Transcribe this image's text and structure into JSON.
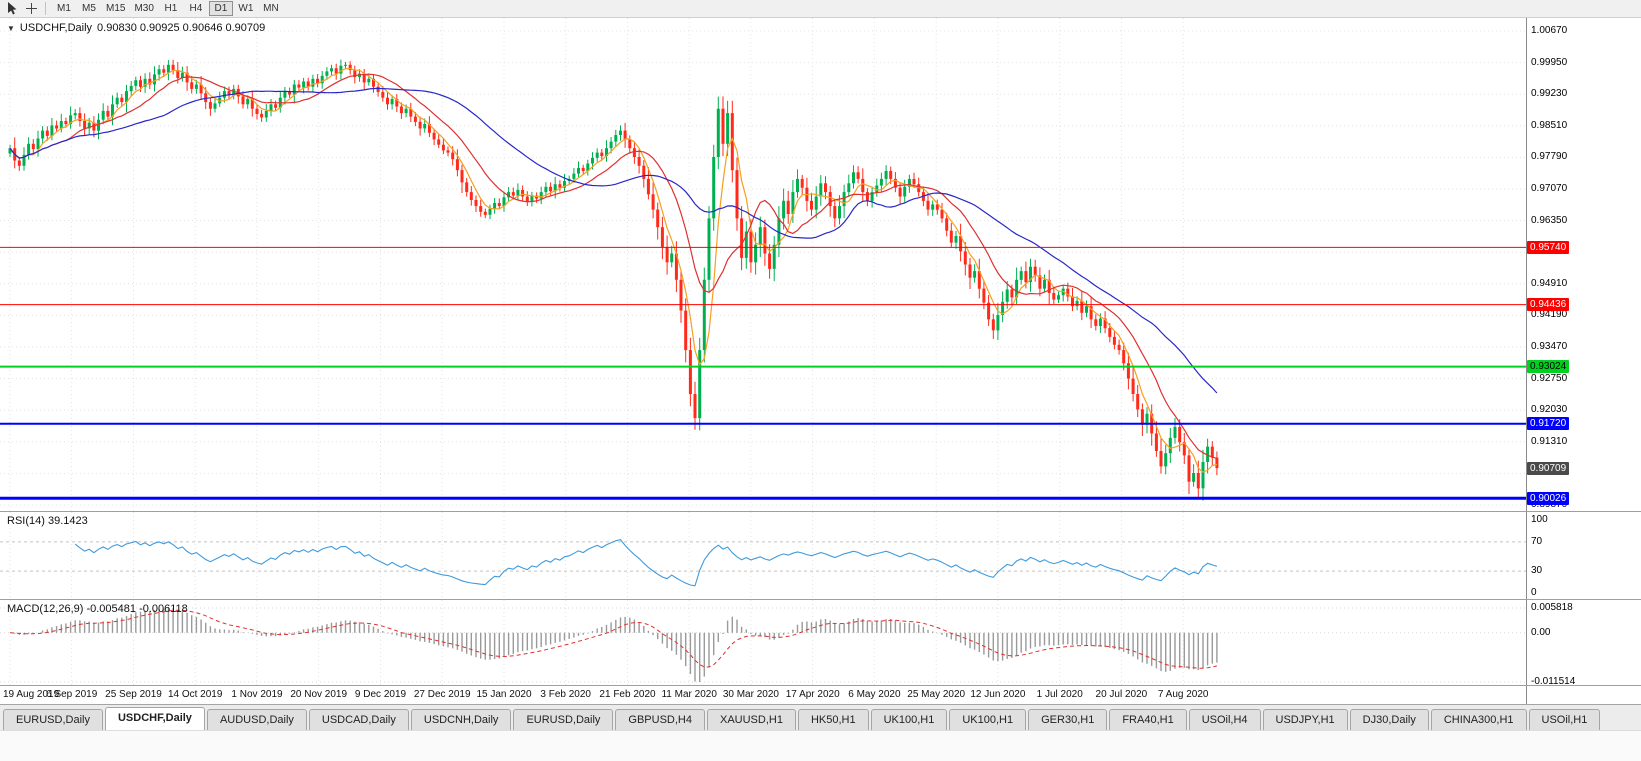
{
  "toolbar": {
    "timeframes": [
      "M1",
      "M5",
      "M15",
      "M30",
      "H1",
      "H4",
      "D1",
      "W1",
      "MN"
    ],
    "active_timeframe": "D1"
  },
  "chart": {
    "title": "USDCHF,Daily",
    "ohlc_text": "0.90830 0.90925 0.90646 0.90709",
    "open": "0.90830",
    "high": "0.90925",
    "low": "0.90646",
    "close": "0.90709"
  },
  "chart_data": {
    "type": "candlestick",
    "symbol": "USDCHF",
    "timeframe": "Daily",
    "x_labels": [
      "19 Aug 2019",
      "6 Sep 2019",
      "25 Sep 2019",
      "14 Oct 2019",
      "1 Nov 2019",
      "20 Nov 2019",
      "9 Dec 2019",
      "27 Dec 2019",
      "15 Jan 2020",
      "3 Feb 2020",
      "21 Feb 2020",
      "11 Mar 2020",
      "30 Mar 2020",
      "17 Apr 2020",
      "6 May 2020",
      "25 May 2020",
      "12 Jun 2020",
      "1 Jul 2020",
      "20 Jul 2020",
      "7 Aug 2020"
    ],
    "y_axis": {
      "top": 1.0067,
      "step": 0.0072,
      "labels": [
        "1.00670",
        "0.99950",
        "0.99230",
        "0.98510",
        "0.97790",
        "0.97070",
        "0.96350",
        "0.95630",
        "0.94910",
        "0.94190",
        "0.93470",
        "0.92750",
        "0.92030",
        "0.91310",
        "0.90590",
        "0.89870"
      ]
    },
    "closes": [
      0.98,
      0.9772,
      0.976,
      0.9785,
      0.981,
      0.9798,
      0.9822,
      0.984,
      0.9828,
      0.9852,
      0.9845,
      0.9862,
      0.9855,
      0.9875,
      0.988,
      0.9862,
      0.9845,
      0.9858,
      0.984,
      0.9865,
      0.9885,
      0.9872,
      0.99,
      0.9915,
      0.9905,
      0.993,
      0.9942,
      0.9955,
      0.994,
      0.9958,
      0.9945,
      0.9968,
      0.998,
      0.9972,
      0.999,
      0.9978,
      0.996,
      0.9972,
      0.995,
      0.9935,
      0.9945,
      0.9925,
      0.9905,
      0.989,
      0.9902,
      0.9915,
      0.993,
      0.992,
      0.9935,
      0.9918,
      0.99,
      0.9912,
      0.989,
      0.9878,
      0.987,
      0.9885,
      0.99,
      0.9892,
      0.9915,
      0.993,
      0.9922,
      0.9945,
      0.9938,
      0.9952,
      0.994,
      0.9958,
      0.9948,
      0.9965,
      0.9975,
      0.9982,
      0.997,
      0.9988,
      0.999,
      0.9978,
      0.9962,
      0.997,
      0.995,
      0.9958,
      0.994,
      0.9928,
      0.9915,
      0.99,
      0.9912,
      0.9895,
      0.988,
      0.989,
      0.9872,
      0.986,
      0.9845,
      0.9855,
      0.9835,
      0.982,
      0.9808,
      0.9795,
      0.979,
      0.9775,
      0.975,
      0.9722,
      0.97,
      0.9682,
      0.9668,
      0.9655,
      0.9648,
      0.9662,
      0.9675,
      0.9668,
      0.9688,
      0.97,
      0.9692,
      0.9705,
      0.969,
      0.9678,
      0.9692,
      0.9685,
      0.97,
      0.9712,
      0.9702,
      0.9718,
      0.971,
      0.9725,
      0.973,
      0.9742,
      0.9755,
      0.9748,
      0.9765,
      0.9778,
      0.979,
      0.9782,
      0.98,
      0.9815,
      0.983,
      0.984,
      0.982,
      0.98,
      0.978,
      0.976,
      0.973,
      0.9695,
      0.966,
      0.962,
      0.9575,
      0.954,
      0.956,
      0.95,
      0.943,
      0.934,
      0.924,
      0.9185,
      0.934,
      0.95,
      0.964,
      0.978,
      0.989,
      0.981,
      0.988,
      0.975,
      0.964,
      0.955,
      0.961,
      0.954,
      0.958,
      0.962,
      0.956,
      0.9525,
      0.958,
      0.964,
      0.968,
      0.965,
      0.97,
      0.973,
      0.971,
      0.968,
      0.966,
      0.969,
      0.972,
      0.97,
      0.9668,
      0.964,
      0.9668,
      0.97,
      0.972,
      0.9745,
      0.973,
      0.97,
      0.968,
      0.97,
      0.9715,
      0.973,
      0.9748,
      0.973,
      0.971,
      0.969,
      0.9712,
      0.973,
      0.9718,
      0.97,
      0.968,
      0.966,
      0.9672,
      0.966,
      0.964,
      0.9612,
      0.9585,
      0.96,
      0.9565,
      0.9535,
      0.9505,
      0.952,
      0.948,
      0.9448,
      0.941,
      0.9385,
      0.942,
      0.945,
      0.9478,
      0.946,
      0.95,
      0.952,
      0.9495,
      0.953,
      0.951,
      0.948,
      0.95,
      0.947,
      0.9455,
      0.9465,
      0.948,
      0.9462,
      0.944,
      0.9452,
      0.9425,
      0.944,
      0.941,
      0.9395,
      0.9412,
      0.939,
      0.937,
      0.9352,
      0.934,
      0.931,
      0.9275,
      0.924,
      0.9205,
      0.917,
      0.9195,
      0.915,
      0.911,
      0.9075,
      0.9105,
      0.914,
      0.9165,
      0.913,
      0.91,
      0.904,
      0.906,
      0.9025,
      0.9085,
      0.912,
      0.9095,
      0.9071
    ],
    "hlines": [
      {
        "price": 0.9574,
        "label": "0.95740",
        "color": "#ff0000",
        "width": 1,
        "text": "#ffffff"
      },
      {
        "price": 0.94436,
        "label": "0.94436",
        "color": "#ff0000",
        "width": 1,
        "text": "#ffffff"
      },
      {
        "price": 0.93024,
        "label": "0.93024",
        "color": "#00d020",
        "width": 2,
        "text": "#000000"
      },
      {
        "price": 0.9172,
        "label": "0.91720",
        "color": "#0000ff",
        "width": 2,
        "text": "#ffffff"
      },
      {
        "price": 0.90026,
        "label": "0.90026",
        "color": "#0000ff",
        "width": 3,
        "text": "#ffffff"
      }
    ],
    "current_price": {
      "value": 0.90709,
      "label": "0.90709",
      "bg": "#4a4a4a",
      "text": "#ffffff"
    },
    "moving_averages": [
      {
        "period": 5,
        "color": "#f5a020"
      },
      {
        "period": 13,
        "color": "#e03030"
      },
      {
        "period": 34,
        "color": "#2828c8"
      }
    ],
    "colors": {
      "up": "#00b050",
      "down": "#ff2a1a",
      "grid": "#e3e3e3",
      "rsi": "#3e9bde",
      "macd_hist": "#9a9a9a",
      "macd_signal": "#e03030"
    }
  },
  "rsi": {
    "label": "RSI(14) 39.1423",
    "period": 14,
    "current": 39.1423,
    "levels": [
      70,
      30
    ],
    "axis_labels": [
      {
        "v": 100,
        "t": "100"
      },
      {
        "v": 70,
        "t": "70"
      },
      {
        "v": 30,
        "t": "30"
      },
      {
        "v": 0,
        "t": "0"
      }
    ]
  },
  "macd": {
    "label": "MACD(12,26,9) -0.005481 -0.006118",
    "fast": 12,
    "slow": 26,
    "signal_period": 9,
    "value": -0.005481,
    "signal_value": -0.006118,
    "axis_top": 0.005818,
    "axis_bottom": -0.011514,
    "axis_labels": [
      "0.005818",
      "0.00",
      "-0.011514"
    ]
  },
  "tabs": [
    {
      "label": "EURUSD,Daily",
      "active": false
    },
    {
      "label": "USDCHF,Daily",
      "active": true
    },
    {
      "label": "AUDUSD,Daily",
      "active": false
    },
    {
      "label": "USDCAD,Daily",
      "active": false
    },
    {
      "label": "USDCNH,Daily",
      "active": false
    },
    {
      "label": "EURUSD,Daily",
      "active": false
    },
    {
      "label": "GBPUSD,H4",
      "active": false
    },
    {
      "label": "XAUUSD,H1",
      "active": false
    },
    {
      "label": "HK50,H1",
      "active": false
    },
    {
      "label": "UK100,H1",
      "active": false
    },
    {
      "label": "UK100,H1",
      "active": false
    },
    {
      "label": "GER30,H1",
      "active": false
    },
    {
      "label": "FRA40,H1",
      "active": false
    },
    {
      "label": "USOil,H4",
      "active": false
    },
    {
      "label": "USDJPY,H1",
      "active": false
    },
    {
      "label": "DJ30,Daily",
      "active": false
    },
    {
      "label": "CHINA300,H1",
      "active": false
    },
    {
      "label": "USOil,H1",
      "active": false
    }
  ]
}
